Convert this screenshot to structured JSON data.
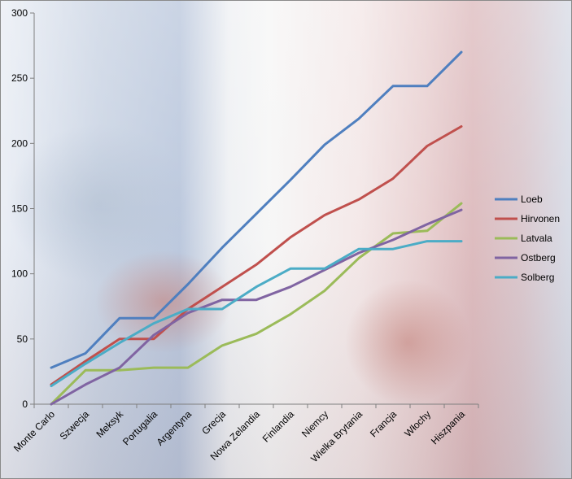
{
  "chart_data": {
    "type": "line",
    "title": "",
    "xlabel": "",
    "ylabel": "",
    "ylim": [
      0,
      300
    ],
    "yticks": [
      0,
      50,
      100,
      150,
      200,
      250,
      300
    ],
    "grid": false,
    "legend_position": "right",
    "categories": [
      "Monte Carlo",
      "Szwecja",
      "Meksyk",
      "Portugalia",
      "Argentyna",
      "Grecja",
      "Nowa Zelandia",
      "Finlandia",
      "Niemcy",
      "Wielka Brytania",
      "Francja",
      "Włochy",
      "Hiszpania"
    ],
    "series": [
      {
        "name": "Loeb",
        "color": "#4f7fbf",
        "values": [
          28,
          39,
          66,
          66,
          92,
          120,
          146,
          172,
          199,
          219,
          244,
          244,
          270
        ]
      },
      {
        "name": "Hirvonen",
        "color": "#c0504d",
        "values": [
          15,
          33,
          50,
          50,
          73,
          90,
          107,
          128,
          145,
          157,
          173,
          198,
          213
        ]
      },
      {
        "name": "Latvala",
        "color": "#9bbb59",
        "values": [
          0,
          26,
          26,
          28,
          28,
          45,
          54,
          69,
          87,
          112,
          131,
          133,
          154
        ]
      },
      {
        "name": "Ostberg",
        "color": "#8064a2",
        "values": [
          0,
          15,
          28,
          53,
          70,
          80,
          80,
          90,
          103,
          116,
          126,
          138,
          149
        ]
      },
      {
        "name": "Solberg",
        "color": "#4bacc6",
        "values": [
          14,
          31,
          47,
          62,
          73,
          73,
          90,
          104,
          104,
          119,
          119,
          125,
          125
        ]
      }
    ]
  }
}
